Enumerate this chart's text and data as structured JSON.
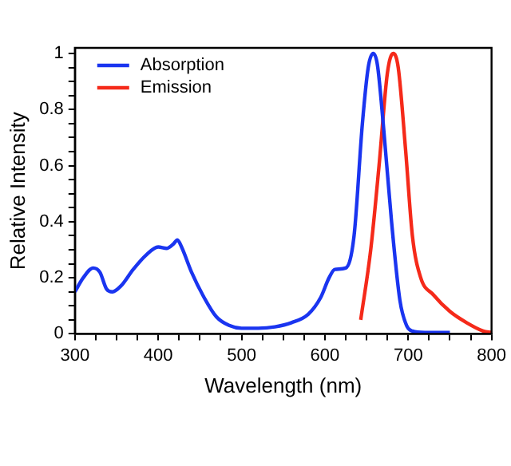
{
  "chart_data": {
    "type": "line",
    "xlabel": "Wavelength (nm)",
    "ylabel": "Relative Intensity",
    "xlim": [
      300,
      800
    ],
    "ylim": [
      0,
      1.02
    ],
    "xticks": [
      300,
      {
        "value": 325,
        "label": null
      },
      400,
      {
        "value": 350,
        "label": null
      },
      {
        "value": 375,
        "label": null
      },
      {
        "value": 425,
        "label": null
      },
      {
        "value": 450,
        "label": null
      },
      {
        "value": 475,
        "label": null
      },
      500,
      {
        "value": 525,
        "label": null
      },
      {
        "value": 550,
        "label": null
      },
      {
        "value": 575,
        "label": null
      },
      600,
      {
        "value": 625,
        "label": null
      },
      {
        "value": 650,
        "label": null
      },
      {
        "value": 675,
        "label": null
      },
      700,
      {
        "value": 725,
        "label": null
      },
      {
        "value": 750,
        "label": null
      },
      {
        "value": 775,
        "label": null
      },
      800
    ],
    "yticks": [
      0,
      {
        "value": 0.05,
        "label": null
      },
      {
        "value": 0.1,
        "label": null
      },
      {
        "value": 0.15,
        "label": null
      },
      0.2,
      {
        "value": 0.25,
        "label": null
      },
      {
        "value": 0.3,
        "label": null
      },
      {
        "value": 0.35,
        "label": null
      },
      0.4,
      {
        "value": 0.45,
        "label": null
      },
      {
        "value": 0.5,
        "label": null
      },
      {
        "value": 0.55,
        "label": null
      },
      0.6,
      {
        "value": 0.65,
        "label": null
      },
      {
        "value": 0.7,
        "label": null
      },
      {
        "value": 0.75,
        "label": null
      },
      0.8,
      {
        "value": 0.85,
        "label": null
      },
      {
        "value": 0.9,
        "label": null
      },
      {
        "value": 0.95,
        "label": null
      },
      1
    ],
    "grid": false,
    "legend": "top left",
    "marker": "none",
    "line_style": "solid",
    "series": [
      {
        "name": "Absorption",
        "color": "#1a35f0",
        "x": [
          300,
          310,
          322,
          330,
          338,
          345,
          355,
          370,
          385,
          400,
          410,
          418,
          423,
          428,
          440,
          455,
          470,
          485,
          500,
          520,
          540,
          560,
          580,
          595,
          605,
          612,
          625,
          635,
          645,
          652,
          658,
          663,
          670,
          680,
          690,
          698,
          705,
          720,
          750
        ],
        "values": [
          0.15,
          0.2,
          0.235,
          0.22,
          0.16,
          0.15,
          0.17,
          0.23,
          0.28,
          0.31,
          0.305,
          0.32,
          0.335,
          0.31,
          0.22,
          0.13,
          0.06,
          0.03,
          0.02,
          0.02,
          0.025,
          0.04,
          0.07,
          0.13,
          0.2,
          0.23,
          0.235,
          0.35,
          0.75,
          0.95,
          1.0,
          0.96,
          0.75,
          0.4,
          0.12,
          0.03,
          0.01,
          0.005,
          0.005
        ]
      },
      {
        "name": "Emission",
        "color": "#f52a1a",
        "x": [
          643,
          655,
          665,
          675,
          682,
          688,
          697,
          705,
          715,
          730,
          750,
          770,
          790,
          800
        ],
        "values": [
          0.05,
          0.3,
          0.6,
          0.93,
          1.0,
          0.95,
          0.65,
          0.35,
          0.2,
          0.14,
          0.08,
          0.04,
          0.01,
          0.005
        ]
      }
    ]
  }
}
